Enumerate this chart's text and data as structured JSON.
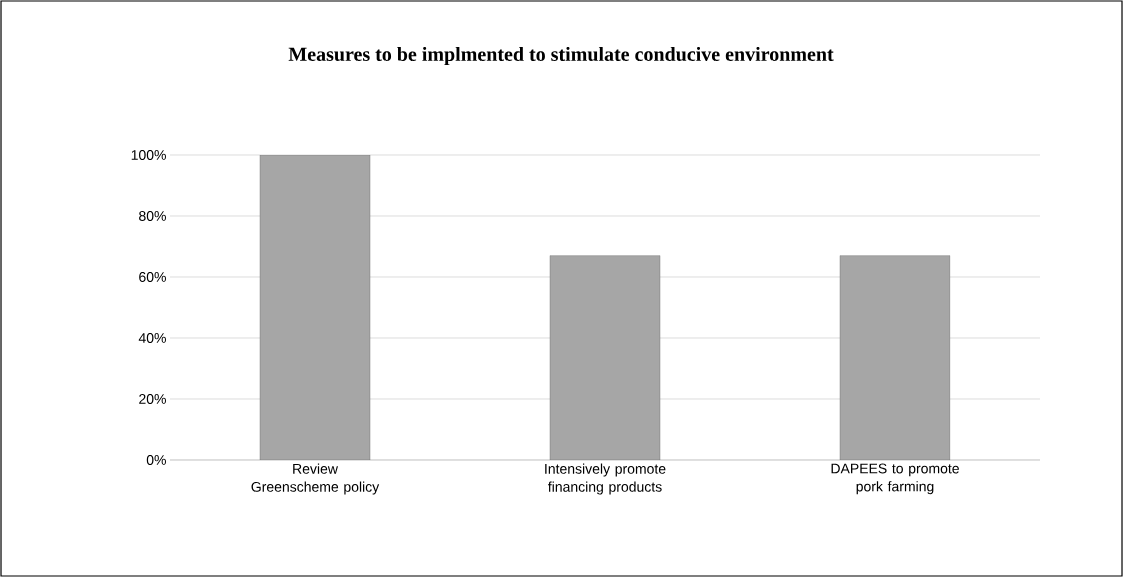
{
  "chart_data": {
    "type": "bar",
    "title": "Measures to be implmented to stimulate conducive environment",
    "categories": [
      "Review Greenscheme policy",
      "Intensively promote financing products",
      "DAPEES to promote pork farming"
    ],
    "values": [
      100,
      67,
      67
    ],
    "color": "#a6a6a6",
    "ylim": [
      0,
      100
    ],
    "yticks": [
      {
        "value": 0,
        "label": "0%"
      },
      {
        "value": 20,
        "label": "20%"
      },
      {
        "value": 40,
        "label": "40%"
      },
      {
        "value": 60,
        "label": "60%"
      },
      {
        "value": 80,
        "label": "80%"
      },
      {
        "value": 100,
        "label": "100%"
      }
    ],
    "grid": "y"
  }
}
